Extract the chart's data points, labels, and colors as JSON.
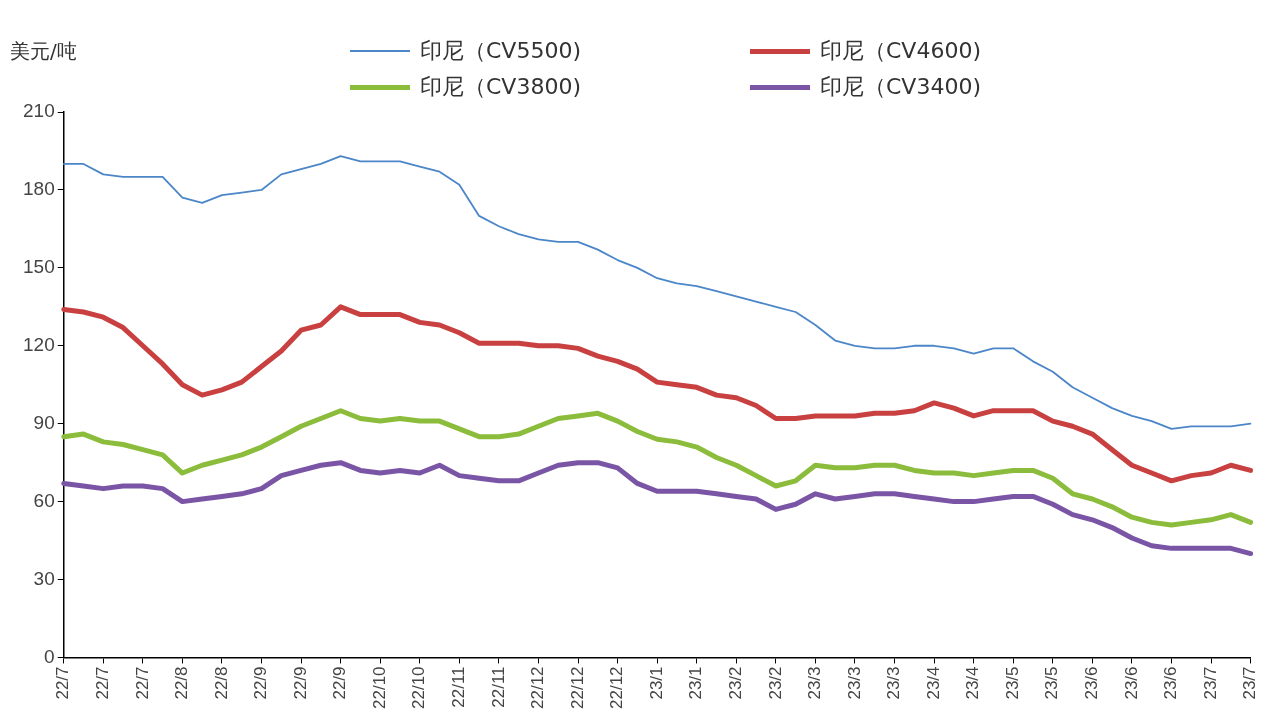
{
  "chart_data": {
    "type": "line",
    "ylabel": "美元/吨",
    "categories": [
      "22/7",
      null,
      "22/7",
      null,
      "22/7",
      null,
      "22/8",
      null,
      "22/8",
      null,
      "22/9",
      null,
      "22/9",
      null,
      "22/9",
      null,
      "22/10",
      null,
      "22/10",
      null,
      "22/11",
      null,
      "22/11",
      null,
      "22/12",
      null,
      "22/12",
      null,
      "22/12",
      null,
      "23/1",
      null,
      "23/1",
      null,
      "23/2",
      null,
      "23/2",
      null,
      "23/3",
      null,
      "23/3",
      null,
      "23/3",
      null,
      "23/4",
      null,
      "23/4",
      null,
      "23/5",
      null,
      "23/5",
      null,
      "23/6",
      null,
      "23/6",
      null,
      "23/6",
      null,
      "23/7",
      null,
      "23/7"
    ],
    "series": [
      {
        "name": "印尼（CV5500)",
        "color": "#4a86c8",
        "values": [
          190,
          190,
          186,
          185,
          185,
          185,
          177,
          175,
          178,
          179,
          180,
          186,
          188,
          190,
          193,
          191,
          191,
          191,
          189,
          187,
          182,
          170,
          166,
          163,
          161,
          160,
          160,
          157,
          153,
          150,
          146,
          144,
          143,
          141,
          139,
          137,
          135,
          133,
          128,
          122,
          120,
          119,
          119,
          120,
          120,
          119,
          117,
          119,
          119,
          114,
          110,
          104,
          100,
          96,
          93,
          91,
          88,
          89,
          89,
          89,
          90
        ]
      },
      {
        "name": "印尼（CV4600)",
        "color": "#c84040",
        "values": [
          134,
          133,
          131,
          127,
          120,
          113,
          105,
          101,
          103,
          106,
          112,
          118,
          126,
          128,
          135,
          132,
          132,
          132,
          129,
          128,
          125,
          121,
          121,
          121,
          120,
          120,
          119,
          116,
          114,
          111,
          106,
          105,
          104,
          101,
          100,
          97,
          92,
          92,
          93,
          93,
          93,
          94,
          94,
          95,
          98,
          96,
          93,
          95,
          95,
          95,
          91,
          89,
          86,
          80,
          74,
          71,
          68,
          70,
          71,
          74,
          72
        ]
      },
      {
        "name": "印尼（CV3800)",
        "color": "#8cbc3c",
        "values": [
          85,
          86,
          83,
          82,
          80,
          78,
          71,
          74,
          76,
          78,
          81,
          85,
          89,
          92,
          95,
          92,
          91,
          92,
          91,
          91,
          88,
          85,
          85,
          86,
          89,
          92,
          93,
          94,
          91,
          87,
          84,
          83,
          81,
          77,
          74,
          70,
          66,
          68,
          74,
          73,
          73,
          74,
          74,
          72,
          71,
          71,
          70,
          71,
          72,
          72,
          69,
          63,
          61,
          58,
          54,
          52,
          51,
          52,
          53,
          55,
          52
        ]
      },
      {
        "name": "印尼（CV3400)",
        "color": "#7a55a5",
        "values": [
          67,
          66,
          65,
          66,
          66,
          65,
          60,
          61,
          62,
          63,
          65,
          70,
          72,
          74,
          75,
          72,
          71,
          72,
          71,
          74,
          70,
          69,
          68,
          68,
          71,
          74,
          75,
          75,
          73,
          67,
          64,
          64,
          64,
          63,
          62,
          61,
          57,
          59,
          63,
          61,
          62,
          63,
          63,
          62,
          61,
          60,
          60,
          61,
          62,
          62,
          59,
          55,
          53,
          50,
          46,
          43,
          42,
          42,
          42,
          42,
          40
        ]
      }
    ],
    "ylim": [
      0,
      210
    ],
    "yticks": [
      0,
      30,
      60,
      90,
      120,
      150,
      180,
      210
    ],
    "grid": false,
    "legend": "top",
    "marker": "none",
    "line_style": "solid"
  }
}
